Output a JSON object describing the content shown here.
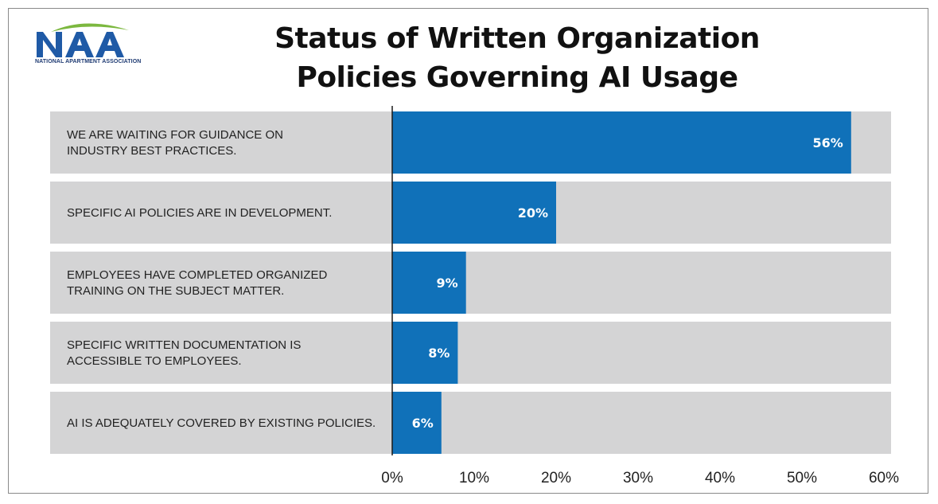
{
  "logo": {
    "letters": "NAA",
    "tagline": "NATIONAL APARTMENT ASSOCIATION"
  },
  "colors": {
    "bar": "#1071b9",
    "track": "#d4d4d5",
    "text": "#222222",
    "logo_blue": "#1f5aa6",
    "logo_green": "#7cb83f"
  },
  "chart_data": {
    "type": "bar",
    "orientation": "horizontal",
    "title_lines": [
      "Status of Written Organization",
      "Policies Governing AI Usage"
    ],
    "categories": [
      [
        "WE ARE WAITING FOR GUIDANCE ON",
        "INDUSTRY BEST PRACTICES."
      ],
      [
        "SPECIFIC AI POLICIES ARE IN DEVELOPMENT."
      ],
      [
        "EMPLOYEES HAVE COMPLETED ORGANIZED",
        "TRAINING ON THE SUBJECT MATTER."
      ],
      [
        "SPECIFIC WRITTEN DOCUMENTATION IS",
        "ACCESSIBLE TO EMPLOYEES."
      ],
      [
        "AI IS ADEQUATELY COVERED BY EXISTING POLICIES."
      ]
    ],
    "values": [
      56,
      20,
      9,
      8,
      6
    ],
    "value_labels": [
      "56%",
      "20%",
      "9%",
      "8%",
      "6%"
    ],
    "xlim": [
      0,
      60
    ],
    "xticks": [
      "0%",
      "10%",
      "20%",
      "30%",
      "40%",
      "50%",
      "60%"
    ],
    "xlabel": "",
    "ylabel": "",
    "grid": false,
    "legend": "none"
  }
}
